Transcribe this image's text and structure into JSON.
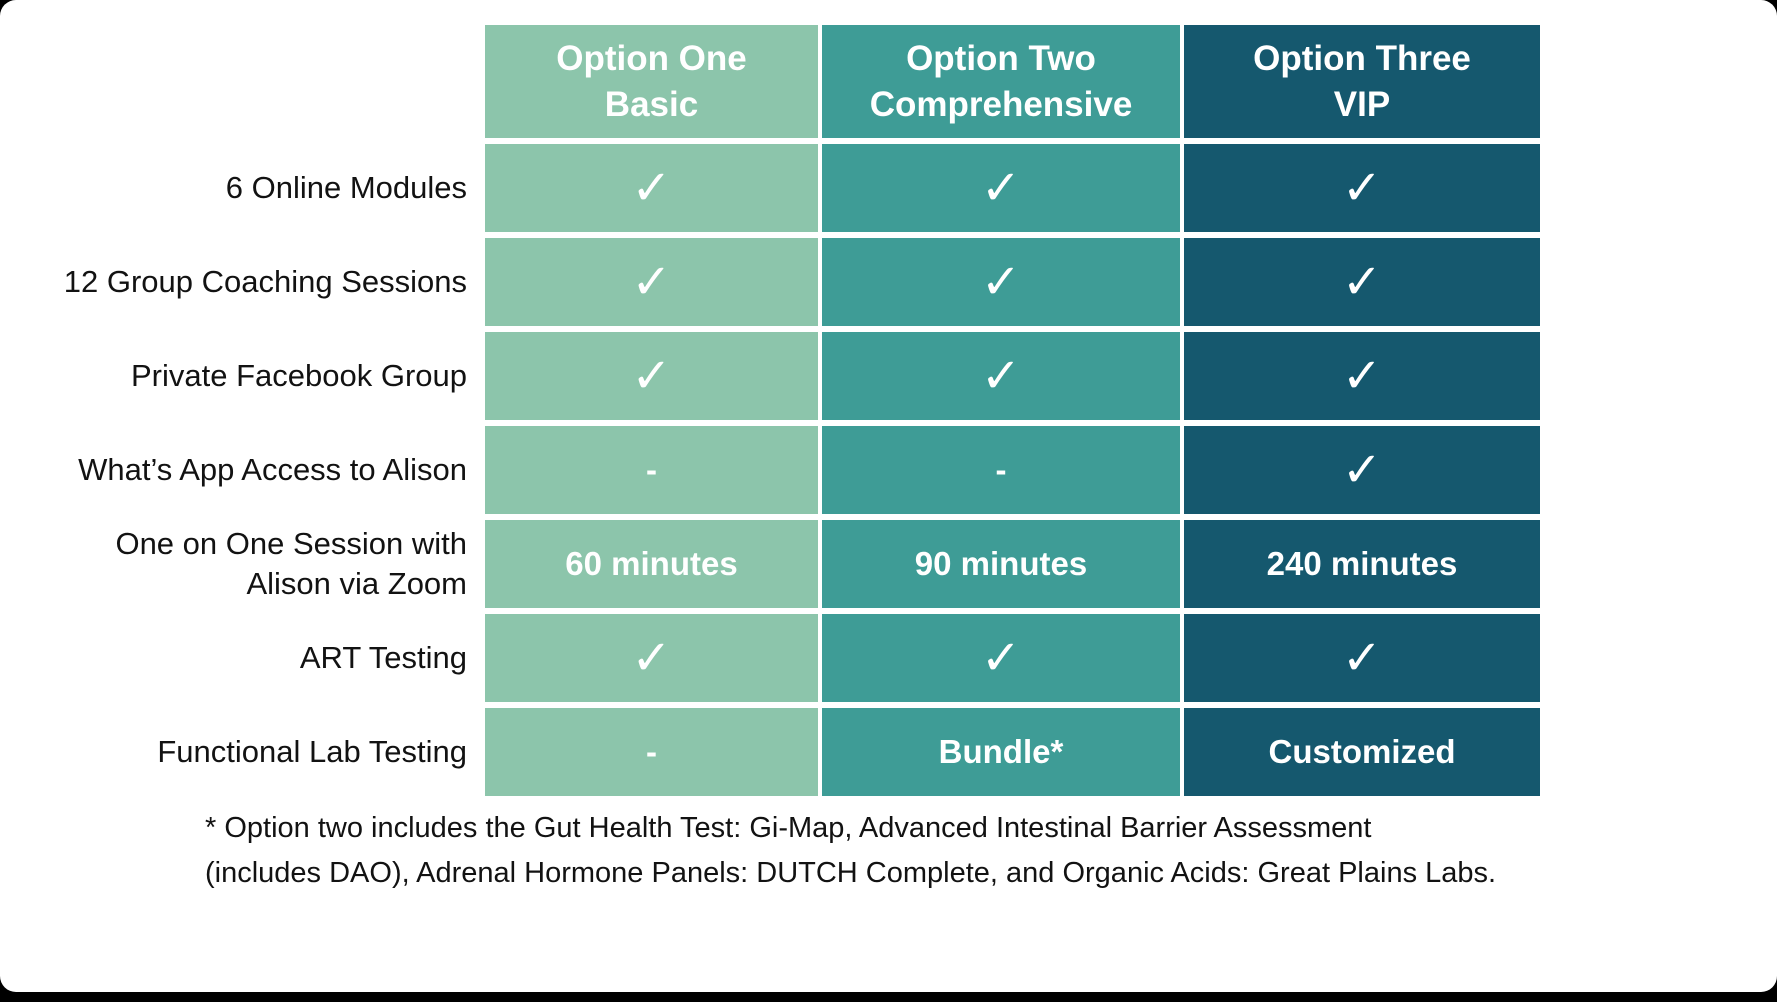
{
  "table": {
    "columns": [
      {
        "line1": "Option One",
        "line2": "Basic",
        "color": "#8CC5AB"
      },
      {
        "line1": "Option Two",
        "line2": "Comprehensive",
        "color": "#3E9C96"
      },
      {
        "line1": "Option Three",
        "line2": "VIP",
        "color": "#15586E"
      }
    ],
    "rows": [
      {
        "label": "6 Online Modules",
        "values": [
          "✓",
          "✓",
          "✓"
        ]
      },
      {
        "label": "12 Group Coaching Sessions",
        "values": [
          "✓",
          "✓",
          "✓"
        ]
      },
      {
        "label": "Private Facebook Group",
        "values": [
          "✓",
          "✓",
          "✓"
        ]
      },
      {
        "label": "What’s App Access to Alison",
        "values": [
          "-",
          "-",
          "✓"
        ]
      },
      {
        "label": "One on One Session with Alison via Zoom",
        "values": [
          "60 minutes",
          "90 minutes",
          "240 minutes"
        ]
      },
      {
        "label": "ART Testing",
        "values": [
          "✓",
          "✓",
          "✓"
        ]
      },
      {
        "label": "Functional Lab Testing",
        "values": [
          "-",
          "Bundle*",
          "Customized"
        ]
      }
    ],
    "footnote_lines": [
      "* Option two includes the Gut Health Test: Gi-Map, Advanced Intestinal Barrier Assessment",
      "(includes DAO), Adrenal Hormone Panels: DUTCH Complete, and Organic Acids: Great Plains Labs."
    ]
  },
  "chart_data": {
    "type": "table",
    "title": "",
    "columns": [
      "",
      "Option One Basic",
      "Option Two Comprehensive",
      "Option Three VIP"
    ],
    "rows": [
      [
        "6 Online Modules",
        "✓",
        "✓",
        "✓"
      ],
      [
        "12 Group Coaching Sessions",
        "✓",
        "✓",
        "✓"
      ],
      [
        "Private Facebook Group",
        "✓",
        "✓",
        "✓"
      ],
      [
        "What’s App Access to Alison",
        "-",
        "-",
        "✓"
      ],
      [
        "One on One Session with Alison via Zoom",
        "60 minutes",
        "90 minutes",
        "240 minutes"
      ],
      [
        "ART Testing",
        "✓",
        "✓",
        "✓"
      ],
      [
        "Functional Lab Testing",
        "-",
        "Bundle*",
        "Customized"
      ]
    ],
    "footnote": "* Option two includes the Gut Health Test: Gi-Map, Advanced Intestinal Barrier Assessment (includes DAO), Adrenal Hormone Panels: DUTCH Complete, and Organic Acids: Great Plains Labs.",
    "column_colors": [
      "#8CC5AB",
      "#3E9C96",
      "#15586E"
    ]
  }
}
